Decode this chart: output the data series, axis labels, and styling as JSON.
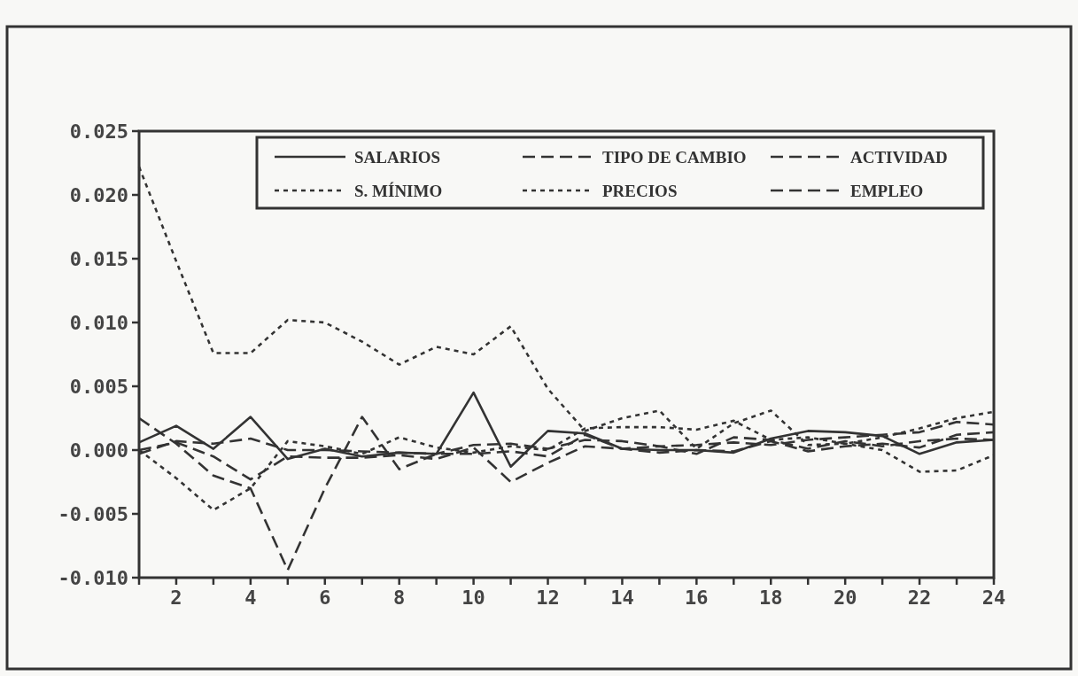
{
  "chart_data": {
    "type": "line",
    "x": [
      1,
      2,
      3,
      4,
      5,
      6,
      7,
      8,
      9,
      10,
      11,
      12,
      13,
      14,
      15,
      16,
      17,
      18,
      19,
      20,
      21,
      22,
      23,
      24
    ],
    "series": [
      {
        "name": "SALARIOS",
        "color": "#333333",
        "line_style": "solid",
        "values": [
          0.0006,
          0.0019,
          0.0001,
          0.0026,
          -0.0007,
          0.0001,
          -0.0005,
          -0.0002,
          -0.0003,
          0.0045,
          -0.0013,
          0.0015,
          0.0013,
          0.0001,
          0.0,
          0.0,
          -0.0002,
          0.0009,
          0.0015,
          0.0014,
          0.0011,
          -0.0003,
          0.0006,
          0.0008
        ]
      },
      {
        "name": "TIPO DE CAMBIO",
        "color": "#333333",
        "line_style": "dashed",
        "values": [
          0.0025,
          0.0005,
          -0.002,
          -0.003,
          -0.0094,
          -0.003,
          0.0026,
          -0.0015,
          -0.0003,
          -0.0003,
          -0.0001,
          -0.0005,
          0.0012,
          0.0001,
          0.0003,
          -0.0003,
          0.001,
          0.0008,
          0.0001,
          0.0007,
          0.0003,
          0.0007,
          0.0009,
          0.0008
        ]
      },
      {
        "name": "ACTIVIDAD",
        "color": "#333333",
        "line_style": "dashed",
        "values": [
          0.0,
          0.0006,
          -0.0005,
          -0.0023,
          -0.0005,
          -0.0006,
          -0.0006,
          -0.0004,
          -0.0007,
          0.0002,
          -0.0025,
          -0.001,
          0.0003,
          0.0001,
          -0.0002,
          0.0,
          -0.0001,
          0.0007,
          -0.0001,
          0.0003,
          0.0005,
          0.0002,
          0.0012,
          0.0014
        ]
      },
      {
        "name": "S. MÍNIMO",
        "color": "#333333",
        "line_style": "dotted",
        "values": [
          0.0,
          -0.0022,
          -0.0047,
          -0.003,
          0.0007,
          0.0003,
          -0.0003,
          0.001,
          0.0002,
          -0.0002,
          0.0003,
          0.0,
          0.0017,
          0.0018,
          0.0018,
          0.0016,
          0.0023,
          0.0008,
          0.001,
          0.0005,
          0.001,
          0.0017,
          0.0025,
          0.003
        ]
      },
      {
        "name": "PRECIOS",
        "color": "#333333",
        "line_style": "dotted",
        "values": [
          0.0222,
          0.0148,
          0.0076,
          0.0076,
          0.0102,
          0.01,
          0.0085,
          0.0067,
          0.0081,
          0.0075,
          0.0097,
          0.0048,
          0.0015,
          0.0025,
          0.0031,
          0.0001,
          0.0021,
          0.0031,
          0.0004,
          0.0005,
          0.0,
          -0.0017,
          -0.0016,
          -0.0004
        ]
      },
      {
        "name": "EMPLEO",
        "color": "#333333",
        "line_style": "dashed",
        "values": [
          -0.0003,
          0.0007,
          0.0005,
          0.0009,
          0.0,
          0.0,
          -0.0001,
          -0.0002,
          -0.0003,
          0.0004,
          0.0005,
          0.0001,
          0.0008,
          0.0007,
          0.0003,
          0.0004,
          0.0006,
          0.0004,
          0.0008,
          0.001,
          0.0012,
          0.0014,
          0.0022,
          0.002
        ]
      }
    ],
    "xlim": [
      1,
      24
    ],
    "xticks": [
      {
        "value": 1,
        "label": null
      },
      2,
      {
        "value": 3,
        "label": null
      },
      4,
      {
        "value": 5,
        "label": null
      },
      6,
      {
        "value": 7,
        "label": null
      },
      8,
      {
        "value": 9,
        "label": null
      },
      10,
      {
        "value": 11,
        "label": null
      },
      12,
      {
        "value": 13,
        "label": null
      },
      14,
      {
        "value": 15,
        "label": null
      },
      16,
      {
        "value": 17,
        "label": null
      },
      18,
      {
        "value": 19,
        "label": null
      },
      20,
      {
        "value": 21,
        "label": null
      },
      22,
      {
        "value": 23,
        "label": null
      },
      24
    ],
    "ylim": [
      -0.01,
      0.025
    ],
    "yticks": [
      {
        "value": -0.01,
        "label": "-0.010"
      },
      {
        "value": -0.005,
        "label": "-0.005"
      },
      {
        "value": 0,
        "label": "0.000"
      },
      {
        "value": 0.005,
        "label": "0.005"
      },
      {
        "value": 0.01,
        "label": "0.010"
      },
      {
        "value": 0.015,
        "label": "0.015"
      },
      {
        "value": 0.02,
        "label": "0.020"
      },
      {
        "value": 0.025,
        "label": "0.025"
      }
    ],
    "grid": false,
    "legend": "top",
    "marker": "none"
  }
}
